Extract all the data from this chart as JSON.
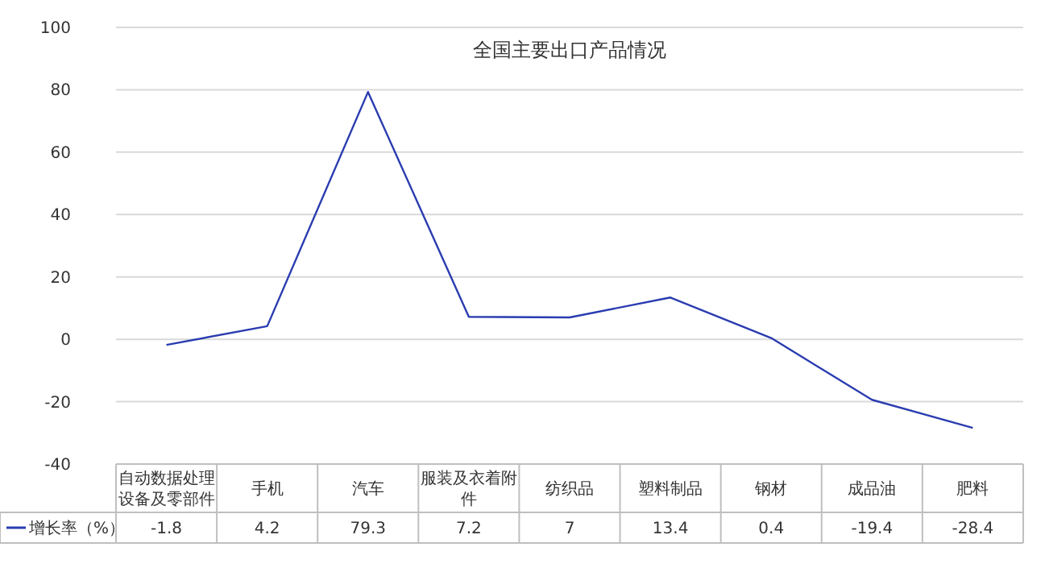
{
  "chart_data": {
    "type": "line",
    "title": "全国主要出口产品情况",
    "categories": [
      "自动数据处理设备及零部件",
      "手机",
      "汽车",
      "服装及衣着附件",
      "纺织品",
      "塑料制品",
      "钢材",
      "成品油",
      "肥料"
    ],
    "series": [
      {
        "name": "增长率（%）",
        "color": "#2a3cb0",
        "values": [
          -1.8,
          4.2,
          79.3,
          7.2,
          7,
          13.4,
          0.4,
          -19.4,
          -28.4
        ]
      }
    ],
    "ylim": [
      -40,
      100
    ],
    "yticks": [
      -40,
      -20,
      0,
      20,
      40,
      60,
      80,
      100
    ],
    "grid": "y",
    "data_labels": true,
    "legend": "bottom left",
    "marker": "none",
    "line_style": "solid"
  }
}
